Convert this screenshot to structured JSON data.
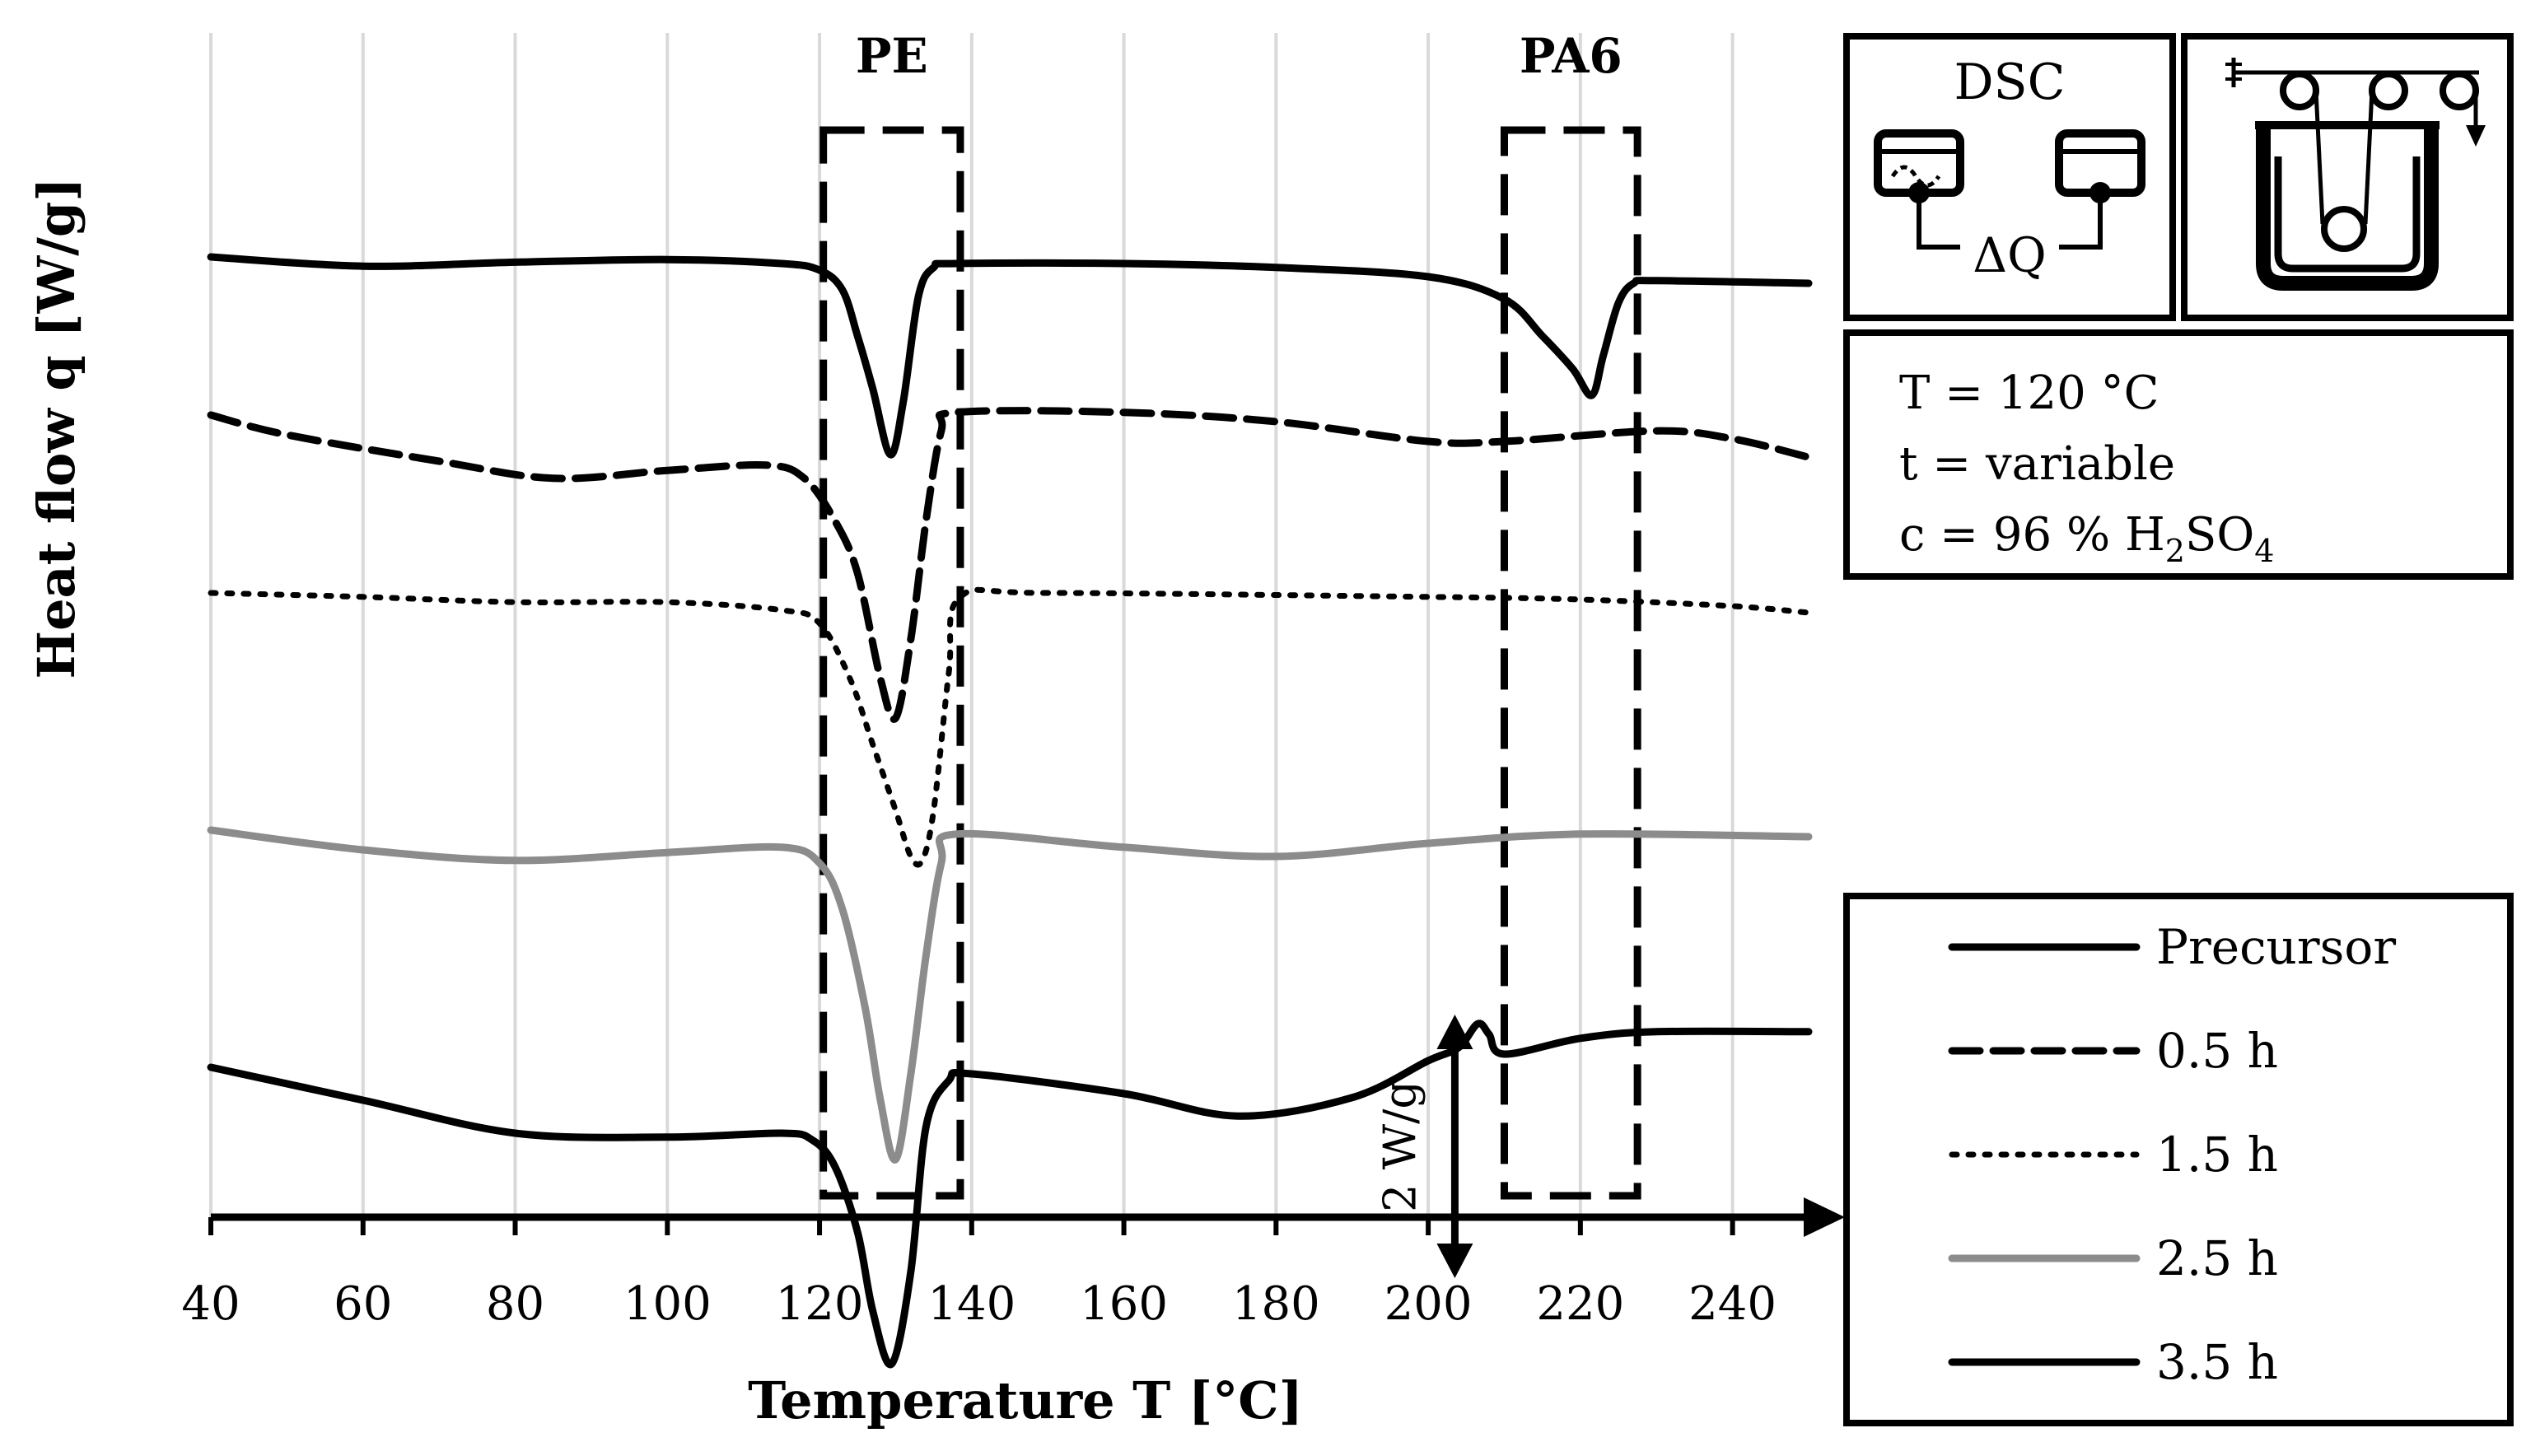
{
  "chart_data": {
    "type": "line",
    "xlabel": "Temperature T [°C]",
    "ylabel": "Heat flow q [W/g]",
    "xlim": [
      40,
      250
    ],
    "x_ticks": [
      40,
      60,
      80,
      100,
      120,
      140,
      160,
      180,
      200,
      220,
      240
    ],
    "grid": "vertical",
    "legend_position": "bottom-right",
    "annotations": {
      "pe_label": "PE",
      "pe_range": [
        120.5,
        138.5
      ],
      "pa6_label": "PA6",
      "pa6_range": [
        210,
        227.5
      ],
      "scale_bar_label": "2 W/g",
      "scale_bar_x": 203.5,
      "dsc_label": "DSC",
      "dsc_delta": "ΔQ"
    },
    "conditions": {
      "line1": "T = 120 °C",
      "line2": "t = variable",
      "line3_prefix": "c = 96 % H",
      "line3_sub1": "2",
      "line3_mid": "SO",
      "line3_sub2": "4"
    },
    "series": [
      {
        "name": "Precursor",
        "style": "solid",
        "color": "#000000",
        "points": [
          [
            40,
            5.6
          ],
          [
            60,
            5.53
          ],
          [
            80,
            5.56
          ],
          [
            100,
            5.58
          ],
          [
            115,
            5.55
          ],
          [
            120,
            5.5
          ],
          [
            123,
            5.35
          ],
          [
            125,
            5.0
          ],
          [
            127,
            4.6
          ],
          [
            129.3,
            4.1
          ],
          [
            131,
            4.5
          ],
          [
            133,
            5.3
          ],
          [
            135,
            5.52
          ],
          [
            138,
            5.55
          ],
          [
            160,
            5.55
          ],
          [
            180,
            5.52
          ],
          [
            200,
            5.45
          ],
          [
            210,
            5.28
          ],
          [
            215,
            5.0
          ],
          [
            219,
            4.75
          ],
          [
            221.5,
            4.55
          ],
          [
            223,
            4.85
          ],
          [
            225,
            5.25
          ],
          [
            227,
            5.4
          ],
          [
            230,
            5.42
          ],
          [
            250,
            5.4
          ]
        ]
      },
      {
        "name": "0.5 h",
        "style": "dashed",
        "color": "#000000",
        "points": [
          [
            40,
            4.4
          ],
          [
            50,
            4.25
          ],
          [
            70,
            4.05
          ],
          [
            85,
            3.92
          ],
          [
            100,
            3.98
          ],
          [
            113,
            4.02
          ],
          [
            118,
            3.92
          ],
          [
            122,
            3.6
          ],
          [
            125,
            3.2
          ],
          [
            128,
            2.4
          ],
          [
            130,
            2.1
          ],
          [
            132,
            2.7
          ],
          [
            134,
            3.6
          ],
          [
            136,
            4.28
          ],
          [
            138,
            4.42
          ],
          [
            160,
            4.42
          ],
          [
            180,
            4.35
          ],
          [
            200,
            4.2
          ],
          [
            210,
            4.2
          ],
          [
            230,
            4.28
          ],
          [
            240,
            4.22
          ],
          [
            250,
            4.08
          ]
        ]
      },
      {
        "name": "1.5 h",
        "style": "dotted",
        "color": "#000000",
        "points": [
          [
            40,
            3.05
          ],
          [
            60,
            3.02
          ],
          [
            80,
            2.98
          ],
          [
            100,
            2.98
          ],
          [
            115,
            2.92
          ],
          [
            120,
            2.82
          ],
          [
            124,
            2.4
          ],
          [
            127,
            1.9
          ],
          [
            130,
            1.4
          ],
          [
            132,
            1.05
          ],
          [
            133.5,
            1.02
          ],
          [
            135,
            1.4
          ],
          [
            137,
            2.45
          ],
          [
            138.5,
            3.02
          ],
          [
            150,
            3.05
          ],
          [
            200,
            3.02
          ],
          [
            220,
            3.0
          ],
          [
            240,
            2.95
          ],
          [
            250,
            2.9
          ]
        ]
      },
      {
        "name": "2.5 h",
        "style": "solid",
        "color": "#8c8c8c",
        "points": [
          [
            40,
            1.25
          ],
          [
            60,
            1.1
          ],
          [
            80,
            1.02
          ],
          [
            100,
            1.08
          ],
          [
            115,
            1.12
          ],
          [
            120,
            1.0
          ],
          [
            123,
            0.65
          ],
          [
            126,
            -0.1
          ],
          [
            128,
            -0.8
          ],
          [
            130,
            -1.25
          ],
          [
            132,
            -0.6
          ],
          [
            134,
            0.3
          ],
          [
            136,
            1.0
          ],
          [
            138,
            1.22
          ],
          [
            160,
            1.12
          ],
          [
            180,
            1.05
          ],
          [
            200,
            1.15
          ],
          [
            220,
            1.22
          ],
          [
            250,
            1.2
          ]
        ]
      },
      {
        "name": "3.5 h",
        "style": "solid",
        "color": "#000000",
        "points": [
          [
            40,
            -0.55
          ],
          [
            60,
            -0.8
          ],
          [
            80,
            -1.05
          ],
          [
            100,
            -1.08
          ],
          [
            115,
            -1.05
          ],
          [
            119,
            -1.1
          ],
          [
            122,
            -1.3
          ],
          [
            125,
            -1.8
          ],
          [
            127,
            -2.4
          ],
          [
            129.5,
            -2.8
          ],
          [
            132,
            -2.1
          ],
          [
            134,
            -1.0
          ],
          [
            137,
            -0.65
          ],
          [
            140,
            -0.6
          ],
          [
            160,
            -0.75
          ],
          [
            175,
            -0.92
          ],
          [
            190,
            -0.78
          ],
          [
            200,
            -0.5
          ],
          [
            204,
            -0.4
          ],
          [
            206.5,
            -0.22
          ],
          [
            208,
            -0.3
          ],
          [
            210,
            -0.45
          ],
          [
            220,
            -0.33
          ],
          [
            230,
            -0.28
          ],
          [
            250,
            -0.28
          ]
        ]
      }
    ]
  }
}
